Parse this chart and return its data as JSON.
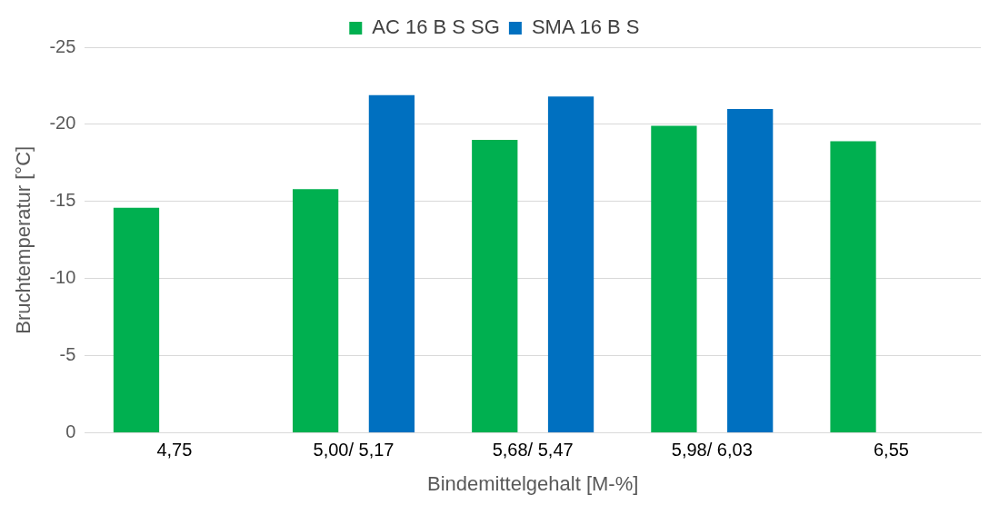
{
  "chart_data": {
    "type": "bar",
    "xlabel": "Bindemittelgehalt [M-%]",
    "ylabel": "Bruchtemperatur [°C]",
    "categories": [
      "4,75",
      "5,00/ 5,17",
      "5,68/ 5,47",
      "5,98/ 6,03",
      "6,55"
    ],
    "series": [
      {
        "name": "AC 16 B S SG",
        "color": "#00b050",
        "values": [
          -14.6,
          -15.8,
          -19.0,
          -19.9,
          -18.9
        ]
      },
      {
        "name": "SMA 16 B S",
        "color": "#0070c0",
        "values": [
          null,
          -21.9,
          -21.8,
          -21.0,
          null
        ]
      }
    ],
    "ylim": [
      0,
      -25
    ],
    "yticks": [
      0,
      -5,
      -10,
      -15,
      -20,
      -25
    ],
    "grid": "y",
    "legend": "top"
  }
}
